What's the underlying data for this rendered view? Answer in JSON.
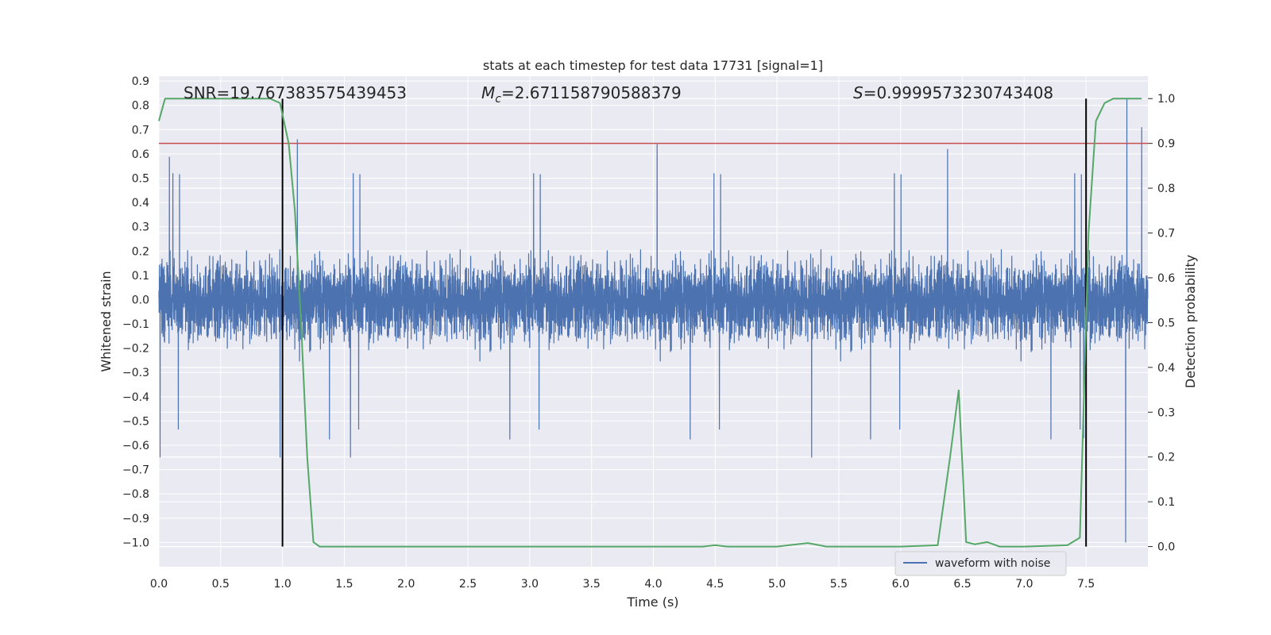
{
  "chart_data": {
    "type": "line",
    "title": "stats at each timestep for test data 17731 [signal=1]",
    "xlabel": "Time (s)",
    "ylabel": "Whitened strain",
    "ylabel_right": "Detection probability",
    "xlim": [
      0.0,
      8.0
    ],
    "ylim": [
      -1.1,
      0.92
    ],
    "ylim_right": [
      -0.045,
      1.05
    ],
    "x_ticks": [
      "0.0",
      "0.5",
      "1.0",
      "1.5",
      "2.0",
      "2.5",
      "3.0",
      "3.5",
      "4.0",
      "4.5",
      "5.0",
      "5.5",
      "6.0",
      "6.5",
      "7.0",
      "7.5"
    ],
    "y_ticks": [
      "0.9",
      "0.8",
      "0.7",
      "0.6",
      "0.5",
      "0.4",
      "0.3",
      "0.2",
      "0.1",
      "0.0",
      "-0.1",
      "-0.2",
      "-0.3",
      "-0.4",
      "-0.5",
      "-0.6",
      "-0.7",
      "-0.8",
      "-0.9",
      "-1.0"
    ],
    "y_ticks_right": [
      "1.0",
      "0.9",
      "0.8",
      "0.7",
      "0.6",
      "0.5",
      "0.4",
      "0.3",
      "0.2",
      "0.1",
      "0.0"
    ],
    "grid": true,
    "legend_position": "lower-right",
    "annotations": {
      "snr": "SNR=19.767383575439453",
      "mc": "M_c=2.671158790588379",
      "mc_symbol": "M",
      "mc_subscript": "c",
      "mc_value": "=2.671158790588379",
      "s_symbol": "S",
      "s_value": "=0.9999573230743408"
    },
    "series": [
      {
        "name": "waveform with noise",
        "kind": "noise_waveform",
        "color": "#4c72b0",
        "sample_rate_hz": 2048,
        "duration_s": 8.0,
        "typical_envelope": [
          -0.45,
          0.45
        ],
        "peak_values": [
          {
            "x": 0.01,
            "y": 0.58
          },
          {
            "x": 0.01,
            "y": -0.65
          },
          {
            "x": 0.98,
            "y": -0.65
          },
          {
            "x": 1.12,
            "y": 0.66
          },
          {
            "x": 1.55,
            "y": -0.65
          },
          {
            "x": 4.03,
            "y": 0.64
          },
          {
            "x": 5.28,
            "y": -0.65
          },
          {
            "x": 6.38,
            "y": 0.62
          },
          {
            "x": 7.48,
            "y": -0.57
          },
          {
            "x": 7.82,
            "y": -1.0
          },
          {
            "x": 7.83,
            "y": 0.83
          },
          {
            "x": 7.95,
            "y": 0.71
          }
        ]
      },
      {
        "kind": "detection_probability",
        "axis": "right",
        "color": "#55a868",
        "x": [
          0.0,
          0.05,
          0.1,
          0.5,
          0.9,
          0.98,
          1.05,
          1.1,
          1.15,
          1.2,
          1.25,
          1.3,
          1.4,
          2.0,
          3.0,
          4.0,
          4.4,
          4.5,
          4.6,
          5.0,
          5.25,
          5.4,
          6.0,
          6.3,
          6.4,
          6.47,
          6.53,
          6.6,
          6.7,
          6.8,
          7.0,
          7.35,
          7.45,
          7.52,
          7.58,
          7.65,
          7.72,
          7.8,
          7.95
        ],
        "y": [
          0.95,
          1.0,
          1.0,
          1.0,
          1.0,
          0.99,
          0.9,
          0.75,
          0.5,
          0.2,
          0.01,
          0.0,
          0.0,
          0.0,
          0.0,
          0.0,
          0.0,
          0.003,
          0.0,
          0.0,
          0.008,
          0.0,
          0.0,
          0.003,
          0.2,
          0.35,
          0.01,
          0.005,
          0.01,
          0.0,
          0.0,
          0.003,
          0.02,
          0.7,
          0.95,
          0.99,
          1.0,
          1.0,
          1.0
        ]
      }
    ],
    "reference_lines": [
      {
        "kind": "hline",
        "axis": "right",
        "y": 0.9,
        "color": "#c44e52"
      },
      {
        "kind": "vline",
        "x": 1.0,
        "y_range_right": [
          0.0,
          1.0
        ],
        "color": "#000000"
      },
      {
        "kind": "vline",
        "x": 7.5,
        "y_range_right": [
          0.0,
          1.0
        ],
        "color": "#000000"
      }
    ]
  }
}
